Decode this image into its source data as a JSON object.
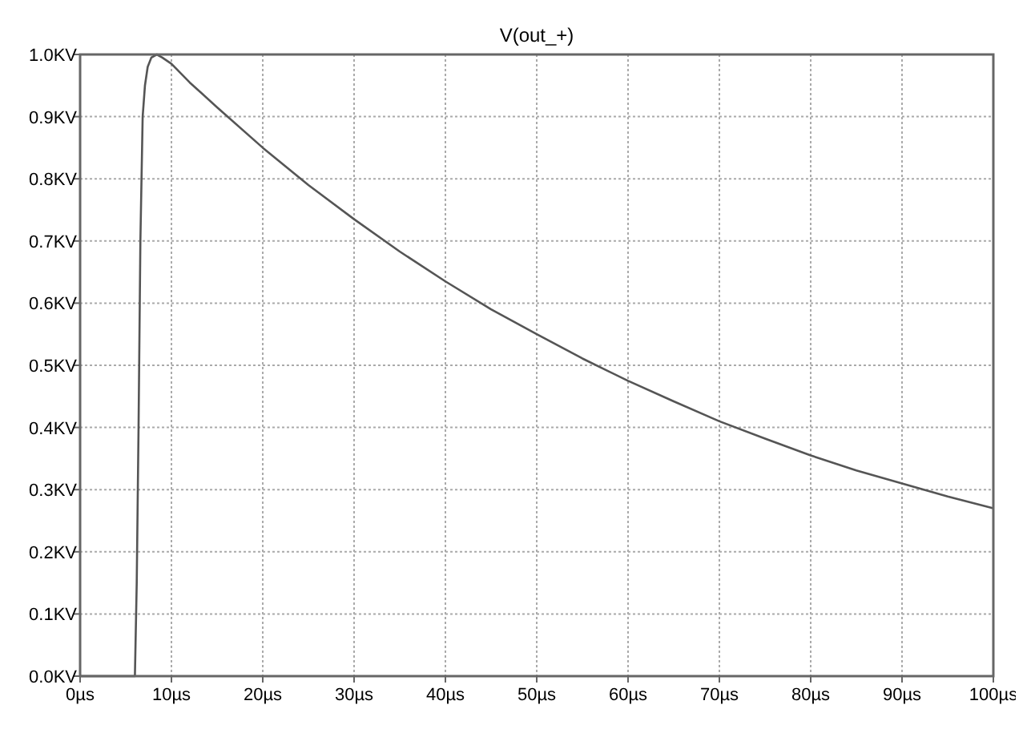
{
  "chart_data": {
    "type": "line",
    "title": "V(out_+)",
    "x": [
      0,
      5,
      6,
      6.2,
      6.4,
      6.6,
      6.85,
      7.1,
      7.4,
      7.8,
      8.4,
      9,
      10,
      12,
      15,
      20,
      25,
      30,
      35,
      40,
      45,
      50,
      55,
      60,
      65,
      70,
      75,
      80,
      85,
      90,
      95,
      100
    ],
    "series": [
      {
        "color": "#555555",
        "values": [
          0,
          0,
          0,
          0.15,
          0.4,
          0.7,
          0.9,
          0.95,
          0.98,
          0.995,
          1.0,
          0.995,
          0.985,
          0.955,
          0.915,
          0.85,
          0.79,
          0.735,
          0.683,
          0.635,
          0.59,
          0.55,
          0.511,
          0.475,
          0.442,
          0.41,
          0.382,
          0.355,
          0.331,
          0.31,
          0.289,
          0.27
        ]
      }
    ],
    "xlim": [
      0,
      100
    ],
    "ylim": [
      0,
      1
    ],
    "xticks": [
      {
        "value": 0,
        "label": "0µs"
      },
      {
        "value": 10,
        "label": "10µs"
      },
      {
        "value": 20,
        "label": "20µs"
      },
      {
        "value": 30,
        "label": "30µs"
      },
      {
        "value": 40,
        "label": "40µs"
      },
      {
        "value": 50,
        "label": "50µs"
      },
      {
        "value": 60,
        "label": "60µs"
      },
      {
        "value": 70,
        "label": "70µs"
      },
      {
        "value": 80,
        "label": "80µs"
      },
      {
        "value": 90,
        "label": "90µs"
      },
      {
        "value": 100,
        "label": "100µs"
      }
    ],
    "yticks": [
      {
        "value": 0,
        "label": "0.0KV"
      },
      {
        "value": 0.1,
        "label": "0.1KV"
      },
      {
        "value": 0.2,
        "label": "0.2KV"
      },
      {
        "value": 0.3,
        "label": "0.3KV"
      },
      {
        "value": 0.4,
        "label": "0.4KV"
      },
      {
        "value": 0.5,
        "label": "0.5KV"
      },
      {
        "value": 0.6,
        "label": "0.6KV"
      },
      {
        "value": 0.7,
        "label": "0.7KV"
      },
      {
        "value": 0.8,
        "label": "0.8KV"
      },
      {
        "value": 0.9,
        "label": "0.9KV"
      },
      {
        "value": 1.0,
        "label": "1.0KV"
      }
    ],
    "grid": true,
    "marker": "none",
    "line_style": "solid"
  }
}
